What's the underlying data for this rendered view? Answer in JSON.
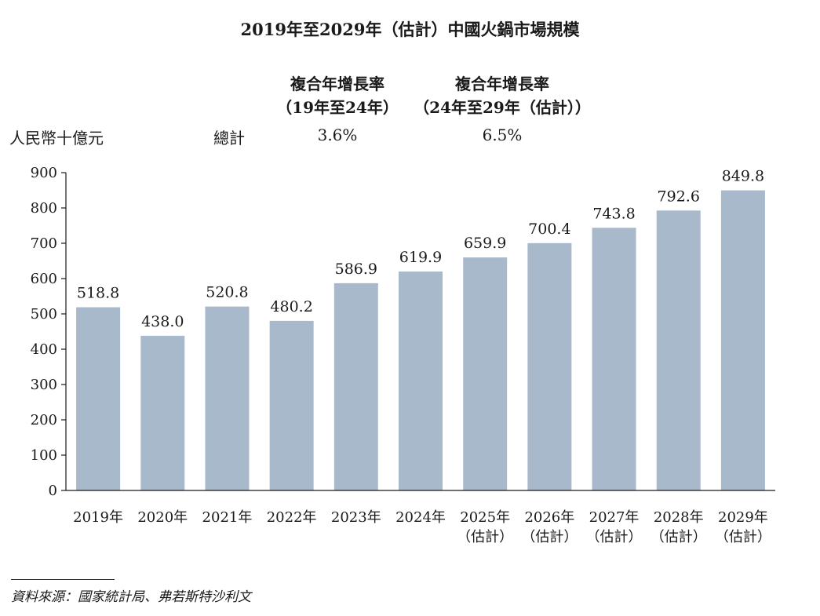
{
  "page": {
    "title": "2019年至2029年（估計）中國火鍋市場規模",
    "unit_label": "人民幣十億元",
    "total_label": "總計",
    "cagr": [
      {
        "heading1": "複合年增長率",
        "heading2": "（19年至24年）",
        "value": "3.6%"
      },
      {
        "heading1": "複合年增長率",
        "heading2": "（24年至29年（估計））",
        "value": "6.5%"
      }
    ],
    "source": "資料來源：國家統計局、弗若斯特沙利文"
  },
  "colors": {
    "bar": "#a9b9cc",
    "axis": "#1a1a1a"
  },
  "chart_data": {
    "type": "bar",
    "title": "2019年至2029年（估計）中國火鍋市場規模",
    "ylabel": "人民幣十億元",
    "ylim": [
      0,
      900
    ],
    "yticks": [
      0,
      100,
      200,
      300,
      400,
      500,
      600,
      700,
      800,
      900
    ],
    "grid": false,
    "categories": [
      "2019年",
      "2020年",
      "2021年",
      "2022年",
      "2023年",
      "2024年",
      "2025年（估計）",
      "2026年（估計）",
      "2027年（估計）",
      "2028年（估計）",
      "2029年（估計）"
    ],
    "category_lines": [
      [
        "2019年"
      ],
      [
        "2020年"
      ],
      [
        "2021年"
      ],
      [
        "2022年"
      ],
      [
        "2023年"
      ],
      [
        "2024年"
      ],
      [
        "2025年",
        "（估計）"
      ],
      [
        "2026年",
        "（估計）"
      ],
      [
        "2027年",
        "（估計）"
      ],
      [
        "2028年",
        "（估計）"
      ],
      [
        "2029年",
        "（估計）"
      ]
    ],
    "values": [
      518.8,
      438.0,
      520.8,
      480.2,
      586.9,
      619.9,
      659.9,
      700.4,
      743.8,
      792.6,
      849.8
    ],
    "labels": [
      "518.8",
      "438.0",
      "520.8",
      "480.2",
      "586.9",
      "619.9",
      "659.9",
      "700.4",
      "743.8",
      "792.6",
      "849.8"
    ]
  }
}
